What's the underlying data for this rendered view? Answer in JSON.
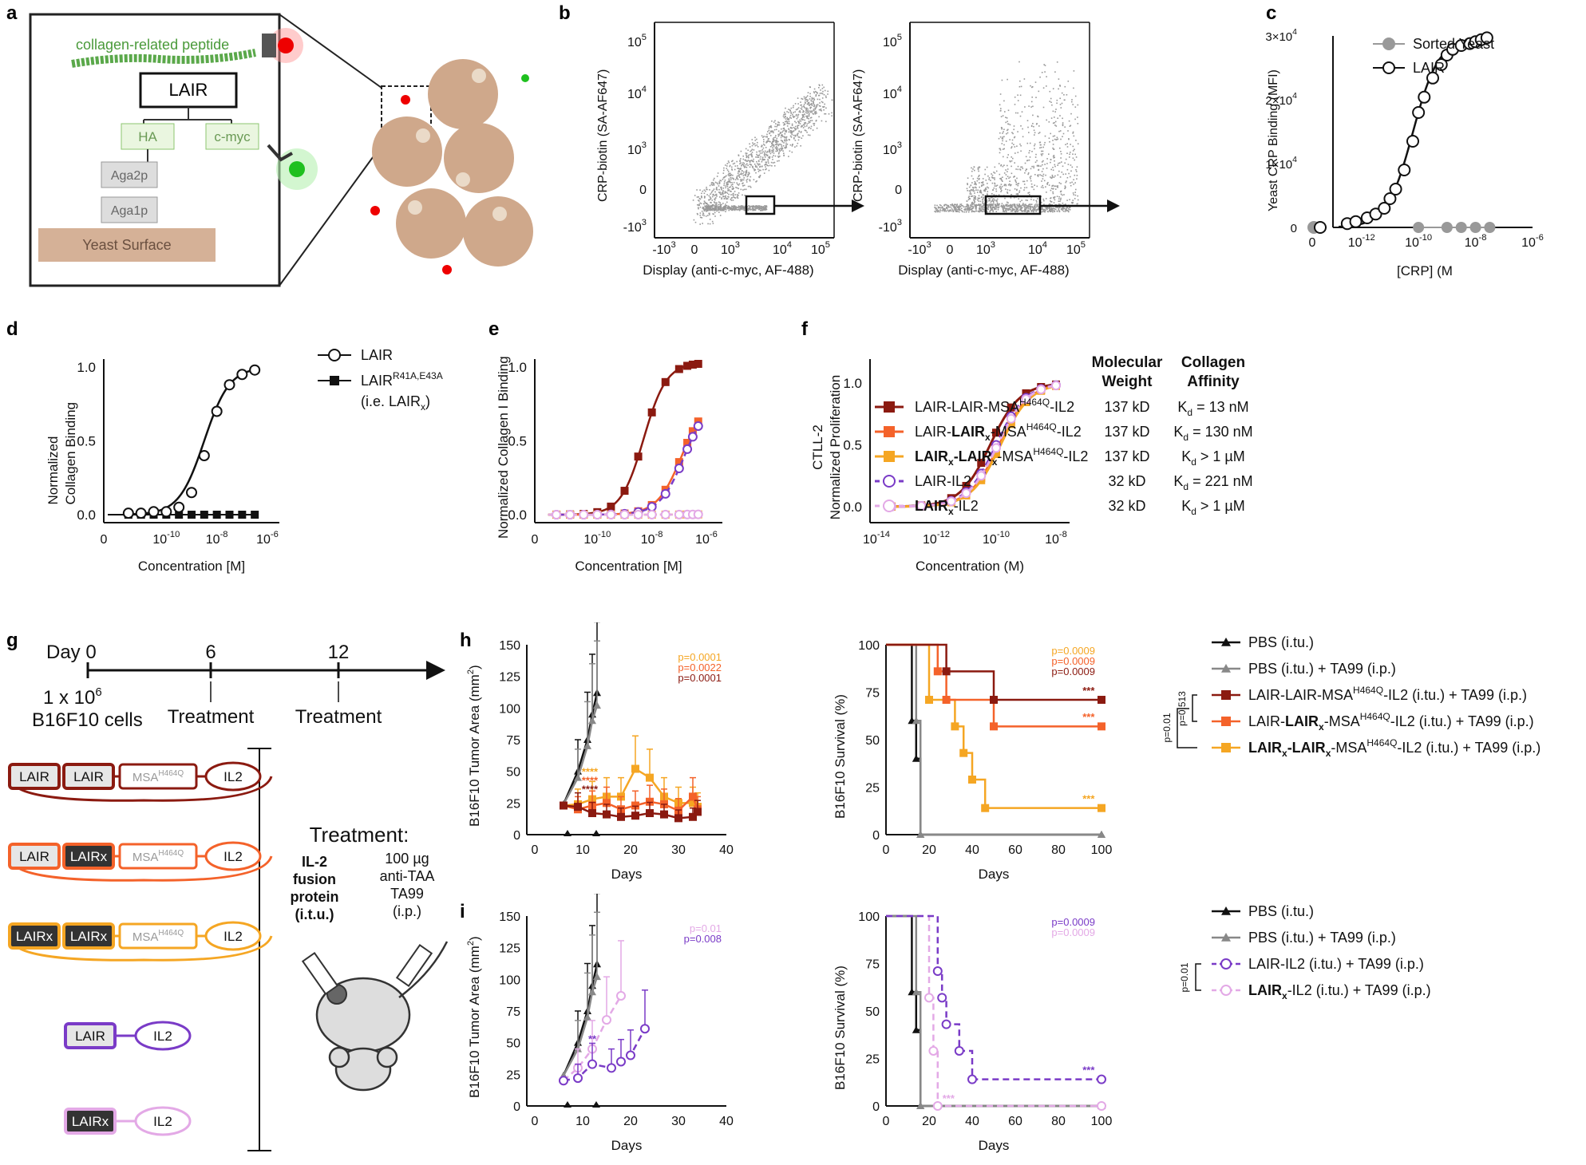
{
  "panel_letters": [
    "a",
    "b",
    "c",
    "d",
    "e",
    "f",
    "g",
    "h",
    "i"
  ],
  "a": {
    "peptide": "collagen-related peptide",
    "lair": "LAIR",
    "ha": "HA",
    "cmyc": "c-myc",
    "aga2p": "Aga2p",
    "aga1p": "Aga1p",
    "yeast": "Yeast Surface"
  },
  "b": {
    "ylabel": "CRP-biotin (SA-AF647)",
    "xlabel": "Display (anti-c-myc, AF-488)",
    "yticks": [
      "10",
      "10",
      "10",
      "10",
      "0",
      "-10"
    ],
    "yexp": [
      "5",
      "4",
      "3",
      "",
      "",
      ""
    ],
    "xticks": [
      "-10",
      "0",
      "10",
      "10",
      "10"
    ],
    "xexp": [
      "3",
      "",
      "3",
      "4",
      "5"
    ]
  },
  "c": {
    "ylabel": "Yeast CRP Binding (MFI)",
    "xlabel": "[CRP] (M",
    "yticks": [
      "3×10",
      "2×10",
      "1×10",
      "0"
    ],
    "xticks": [
      "0",
      "10",
      "10",
      "10",
      "10"
    ],
    "xexp": [
      "",
      "-12",
      "-10",
      "-8",
      "-6"
    ],
    "legend": [
      "Sorted Yeast",
      "LAIR"
    ],
    "x_plot": [
      -12.5,
      -12.2,
      -11.8,
      -11.5,
      -11.2,
      -11.0,
      -10.8,
      -10.5,
      -10.2,
      -10.0,
      -9.8,
      -9.5,
      -9.2,
      -9.0,
      -8.8,
      -8.5,
      -8.2,
      -8.0,
      -7.8,
      -7.6
    ],
    "lair_y": [
      0.02,
      0.03,
      0.05,
      0.07,
      0.1,
      0.15,
      0.2,
      0.3,
      0.45,
      0.6,
      0.68,
      0.78,
      0.85,
      0.9,
      0.93,
      0.95,
      0.96,
      0.97,
      0.98,
      0.99
    ],
    "sorted_x": [
      -10.0,
      -9.0,
      -8.5,
      -8.0,
      -7.5
    ],
    "sorted_y": [
      0,
      0,
      0,
      0,
      0
    ]
  },
  "d": {
    "ylabel": "Normalized Collagen Binding",
    "xlabel": "Concentration [M]",
    "yticks": [
      "1.0",
      "0.5",
      "0.0"
    ],
    "xticks": [
      "0",
      "10",
      "10",
      "10"
    ],
    "xexp": [
      "",
      "-10",
      "-8",
      "-6"
    ],
    "legend": [
      "LAIR",
      "LAIR",
      "(i.e. LAIR"
    ],
    "legend_sup": "R41A,E43A",
    "legend_sub": "x",
    "lair_x": [
      -11.5,
      -11.0,
      -10.5,
      -10.0,
      -9.5,
      -9.0,
      -8.5,
      -8.0,
      -7.5,
      -7.0,
      -6.5
    ],
    "lair_y": [
      0.01,
      0.01,
      0.02,
      0.02,
      0.05,
      0.15,
      0.4,
      0.7,
      0.88,
      0.95,
      0.98
    ],
    "mut_y": [
      0,
      0,
      0,
      0,
      0,
      0,
      0,
      0,
      0,
      0,
      0
    ]
  },
  "e": {
    "ylabel": "Normalized Collagen I Binding",
    "xlabel": "Concentration [M]",
    "yticks": [
      "1.0",
      "0.5",
      "0.0"
    ],
    "xticks": [
      "0",
      "10",
      "10",
      "10"
    ],
    "xexp": [
      "",
      "-10",
      "-8",
      "-6"
    ]
  },
  "f": {
    "ylabel": "CTLL-2 Normalized Proliferation",
    "xlabel": "Concentration (M)",
    "yticks": [
      "1.0",
      "0.5",
      "0.0"
    ],
    "xticks": [
      "10",
      "10",
      "10",
      "10"
    ],
    "xexp": [
      "-14",
      "-12",
      "-10",
      "-8"
    ],
    "col_header_mw": "Molecular Weight",
    "col_header_ca": "Collagen Affinity",
    "rows": [
      {
        "name": "LAIR-LAIR-MSA",
        "sup": "H464Q",
        "tail": "-IL2",
        "mw": "137 kD",
        "kd": "K",
        "kdsub": "d",
        "kdval": " = 13 nM",
        "color": "#8b1a10"
      },
      {
        "name": "LAIR-LAIR",
        "sup": "H464Q",
        "tail": "-IL2",
        "mw": "137 kD",
        "kd": "K",
        "kdsub": "d",
        "kdval": " = 130 nM",
        "color": "#f4622a"
      },
      {
        "name": "LAIR",
        "sup": "H464Q",
        "tail": "-IL2",
        "mw": "137 kD",
        "kd": "K",
        "kdsub": "d",
        "kdval": " > 1 µM",
        "color": "#f5a623"
      },
      {
        "name": "LAIR-IL2",
        "sup": "",
        "tail": "",
        "mw": "32 kD",
        "kd": "K",
        "kdsub": "d",
        "kdval": " = 221 nM",
        "color": "#7a3bc7"
      },
      {
        "name": "LAIR",
        "sup": "",
        "tail": "-IL2",
        "mw": "32 kD",
        "kd": "K",
        "kdsub": "d",
        "kdval": " > 1 µM",
        "color": "#e3a9e6"
      }
    ]
  },
  "g": {
    "day0": "Day 0",
    "d6": "6",
    "d12": "12",
    "cells": "1 x 10",
    "cells_exp": "6",
    "cells2": "B16F10 cells",
    "treat": "Treatment",
    "treatment_title": "Treatment:",
    "il2": "IL-2",
    "fusion": "fusion",
    "protein": "protein",
    "itu": "(i.t.u.)",
    "dose": "100 µg",
    "anti": "anti-TAA",
    "ta99": "TA99",
    "ip": "(i.p.)",
    "lair": "LAIR",
    "lairx": "LAIRx",
    "msa": "MSA",
    "msa_sup": "H464Q",
    "il2box": "IL2"
  },
  "h": {
    "ylabel_tumor": "B16F10 Tumor Area (mm",
    "ylabel_surv": "B16F10 Survival (%)",
    "xlabel": "Days",
    "yticks_tumor": [
      "150",
      "125",
      "100",
      "75",
      "50",
      "25",
      "0"
    ],
    "yticks_surv": [
      "100",
      "75",
      "50",
      "25",
      "0"
    ],
    "xticks_tumor": [
      "0",
      "10",
      "20",
      "30",
      "40"
    ],
    "xticks_surv": [
      "0",
      "20",
      "40",
      "60",
      "80",
      "100"
    ],
    "pvals_tumor": [
      "p=0.0001",
      "p=0.0022",
      "p=0.0001"
    ],
    "pvals_surv": [
      "p=0.0009",
      "p=0.0009",
      "p=0.0009"
    ],
    "stars": "****",
    "stars3": "***",
    "bracket_p1": "p=0.513",
    "bracket_p2": "p=0.01",
    "legend": [
      "PBS (i.tu.)",
      "PBS (i.tu.) + TA99 (i.p.)",
      "LAIR-LAIR-MSA",
      "LAIR-LAIR",
      "LAIR"
    ],
    "legend_tail": "-IL2 (i.tu.) + TA99 (i.p.)",
    "days_pbs": [
      6,
      9,
      11,
      12,
      13
    ],
    "pbs": [
      24,
      50,
      75,
      95,
      112
    ],
    "days_pbs_ta": [
      6,
      9,
      11,
      12,
      13
    ],
    "pbs_ta": [
      24,
      45,
      70,
      90,
      102
    ],
    "days_t": [
      6,
      9,
      12,
      15,
      18,
      21,
      24,
      27,
      30,
      33,
      34
    ],
    "t1": [
      23,
      22,
      17,
      16,
      14,
      15,
      17,
      16,
      13,
      14,
      18
    ],
    "t2": [
      23,
      20,
      23,
      25,
      20,
      23,
      26,
      24,
      19,
      30,
      20
    ],
    "t3": [
      23,
      24,
      28,
      30,
      30,
      52,
      45,
      30,
      25,
      25,
      22
    ],
    "surv_days": [
      0,
      10,
      12,
      14,
      16,
      20,
      24,
      28,
      32,
      36,
      40,
      46,
      50,
      60,
      80,
      100
    ],
    "surv_pbs": [
      100,
      100,
      60,
      40,
      0,
      0,
      0,
      0,
      0,
      0,
      0,
      0,
      0,
      0,
      0,
      0
    ],
    "surv_pbs_ta": [
      100,
      100,
      100,
      60,
      0,
      0,
      0,
      0,
      0,
      0,
      0,
      0,
      0,
      0,
      0,
      0
    ],
    "surv_t1": [
      100,
      100,
      100,
      100,
      100,
      100,
      100,
      86,
      86,
      86,
      86,
      86,
      71,
      71,
      71,
      71
    ],
    "surv_t2": [
      100,
      100,
      100,
      100,
      100,
      100,
      86,
      71,
      71,
      71,
      71,
      71,
      57,
      57,
      57,
      57
    ],
    "surv_t3": [
      100,
      100,
      100,
      100,
      100,
      71,
      71,
      71,
      57,
      43,
      29,
      14,
      14,
      14,
      14,
      14
    ]
  },
  "i": {
    "pvals_tumor": [
      "p=0.01",
      "p=0.008"
    ],
    "pvals_surv": [
      "p=0.0009",
      "p=0.0009"
    ],
    "stars2": "**",
    "stars3": "***",
    "bracket_p": "p=0.01",
    "legend": [
      "PBS (i.tu.)",
      "PBS (i.tu.) + TA99 (i.p.)",
      "LAIR-IL2 (i.tu.) + TA99 (i.p.)",
      "LAIR",
      "-IL2 (i.tu.) + TA99 (i.p.)"
    ],
    "days_t": [
      6,
      9,
      12,
      16,
      18,
      20,
      23
    ],
    "t1": [
      20,
      22,
      33,
      30,
      35,
      40,
      61
    ],
    "days_t2": [
      6,
      9,
      12,
      15,
      18
    ],
    "t2": [
      20,
      30,
      45,
      68,
      87
    ],
    "surv_days": [
      0,
      12,
      14,
      16,
      20,
      22,
      24,
      26,
      28,
      34,
      40,
      100
    ],
    "surv_t1": [
      100,
      100,
      100,
      100,
      100,
      100,
      71,
      57,
      43,
      29,
      14,
      14
    ],
    "surv_t2": [
      100,
      100,
      100,
      100,
      57,
      29,
      0,
      0,
      0,
      0,
      0,
      0
    ]
  },
  "colors": {
    "dark_red": "#8b1a10",
    "orange": "#f4622a",
    "yellow": "#f5a623",
    "purple": "#7a3bc7",
    "pink": "#e3a9e6",
    "gray": "#888888"
  }
}
